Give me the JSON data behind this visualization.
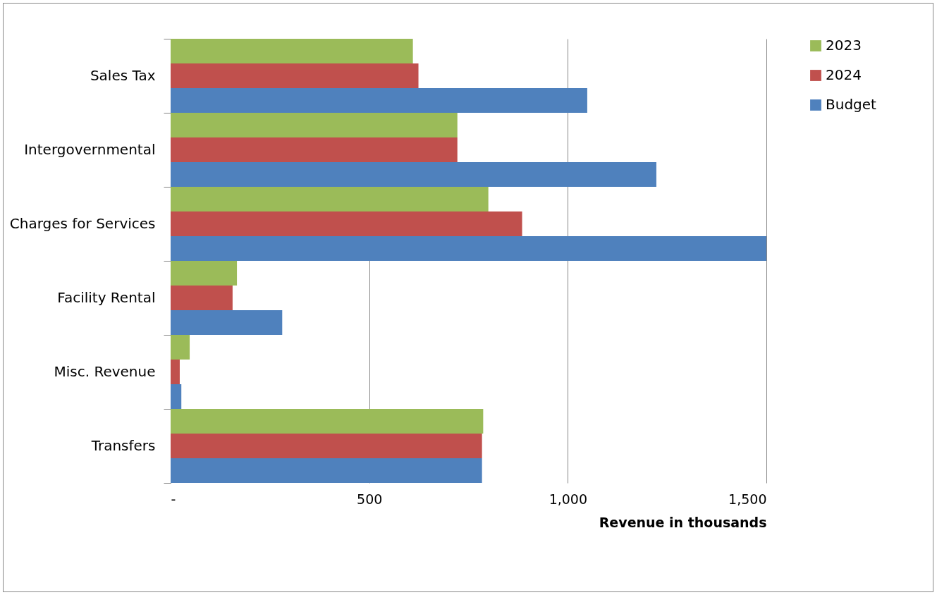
{
  "chart_data": {
    "type": "bar",
    "orientation": "horizontal",
    "xlabel": "Revenue in thousands",
    "categories": [
      "Sales Tax",
      "Intergovernmental",
      "Charges for Services",
      "Facility Rental",
      "Misc. Revenue",
      "Transfers"
    ],
    "series": [
      {
        "name": "2023",
        "color": "#9bbb59",
        "values": [
          610,
          722,
          800,
          167,
          48,
          787
        ]
      },
      {
        "name": "2024",
        "color": "#c0504d",
        "values": [
          624,
          722,
          885,
          156,
          23,
          784
        ]
      },
      {
        "name": "Budget",
        "color": "#4f81bd",
        "values": [
          1049,
          1223,
          1500,
          281,
          27,
          784
        ]
      }
    ],
    "xlim": [
      0,
      1500
    ],
    "xticks": [
      {
        "value": 0,
        "label": "-"
      },
      500,
      {
        "value": 1000,
        "label": "1,000"
      },
      {
        "value": 1500,
        "label": "1,500"
      }
    ],
    "grid": "x",
    "legend": "right"
  }
}
